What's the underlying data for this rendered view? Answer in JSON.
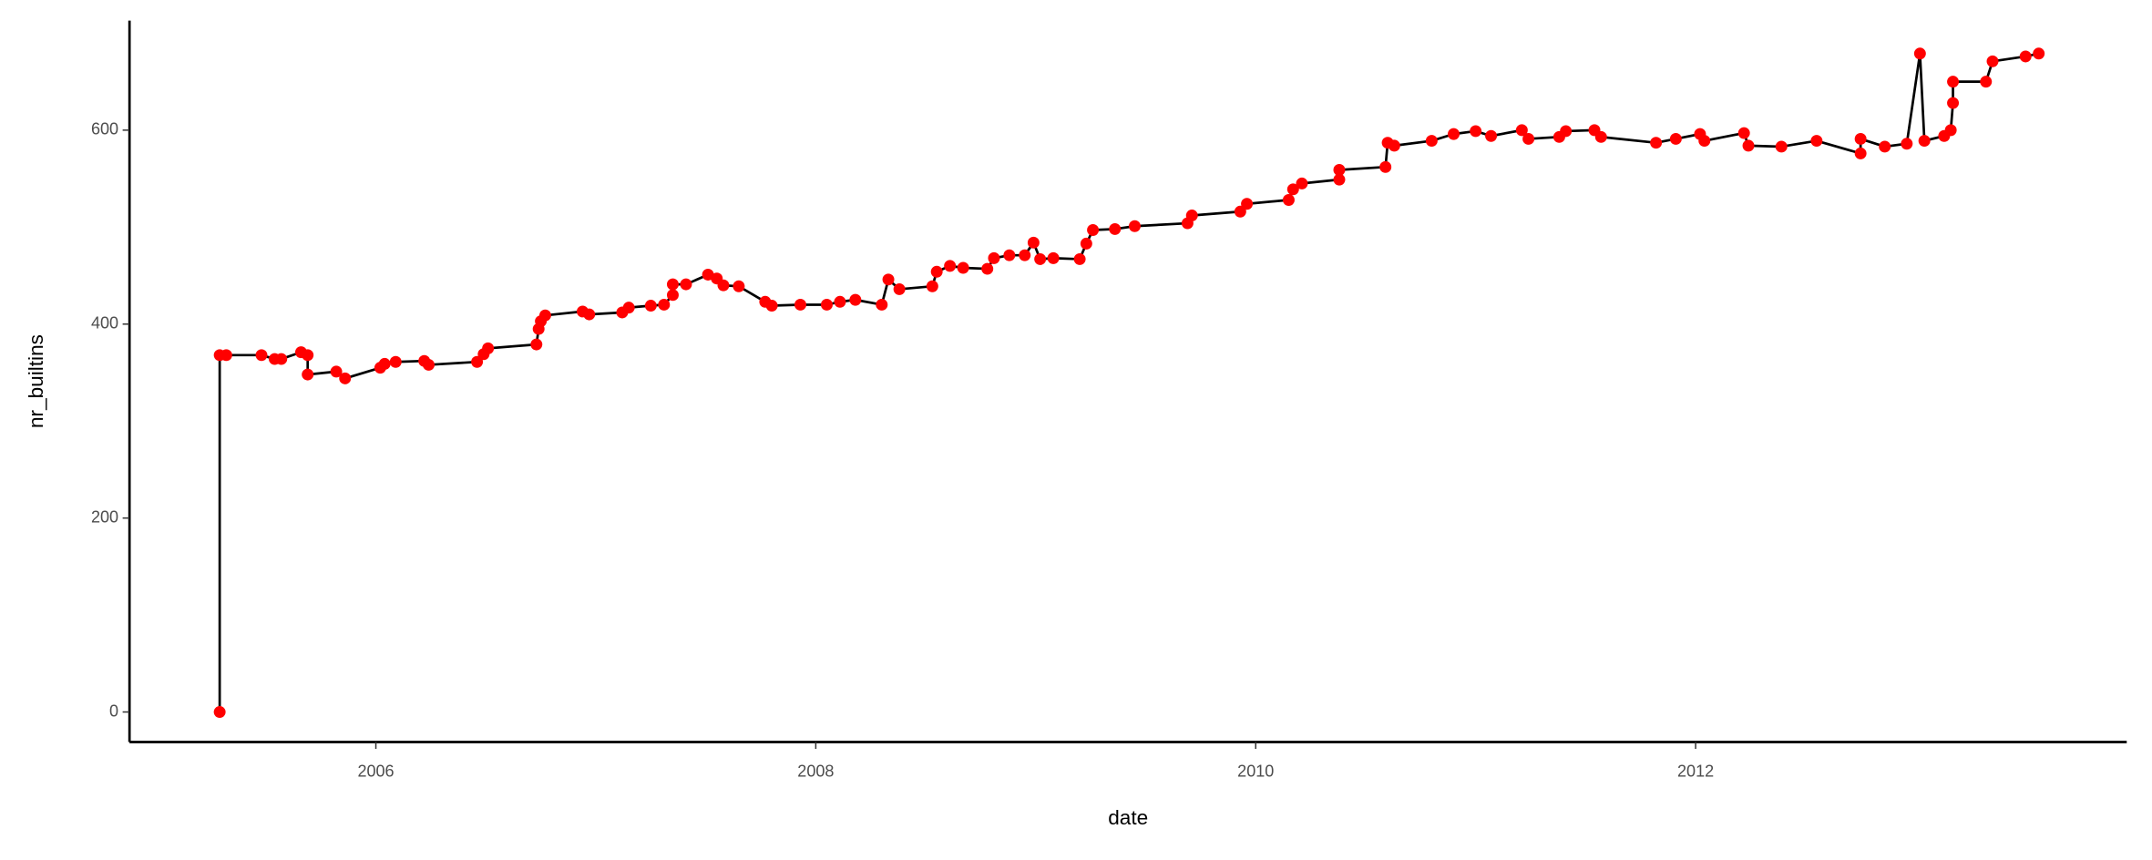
{
  "chart_data": {
    "type": "line",
    "x_label": "date",
    "y_label": "nr_builtins",
    "xlim": [
      2004.88,
      2013.96
    ],
    "ylim": [
      -31,
      713
    ],
    "xticks": [
      2006,
      2008,
      2010,
      2012
    ],
    "yticks": [
      0,
      200,
      400,
      600
    ],
    "grid": false,
    "line_color": "#000000",
    "point_color": "#ff0000",
    "x": [
      2005.29,
      2005.29,
      2005.32,
      2005.48,
      2005.54,
      2005.57,
      2005.66,
      2005.69,
      2005.69,
      2005.82,
      2005.86,
      2006.02,
      2006.04,
      2006.09,
      2006.22,
      2006.24,
      2006.46,
      2006.49,
      2006.51,
      2006.73,
      2006.74,
      2006.75,
      2006.77,
      2006.94,
      2006.97,
      2007.12,
      2007.15,
      2007.25,
      2007.31,
      2007.35,
      2007.35,
      2007.41,
      2007.51,
      2007.55,
      2007.58,
      2007.65,
      2007.77,
      2007.8,
      2007.93,
      2008.05,
      2008.11,
      2008.18,
      2008.3,
      2008.33,
      2008.38,
      2008.53,
      2008.55,
      2008.61,
      2008.67,
      2008.78,
      2008.81,
      2008.88,
      2008.95,
      2008.99,
      2009.02,
      2009.08,
      2009.2,
      2009.23,
      2009.26,
      2009.36,
      2009.45,
      2009.69,
      2009.71,
      2009.93,
      2009.96,
      2010.15,
      2010.17,
      2010.21,
      2010.38,
      2010.38,
      2010.59,
      2010.6,
      2010.63,
      2010.8,
      2010.9,
      2011.0,
      2011.07,
      2011.21,
      2011.24,
      2011.38,
      2011.41,
      2011.54,
      2011.57,
      2011.82,
      2011.91,
      2012.02,
      2012.04,
      2012.22,
      2012.24,
      2012.39,
      2012.55,
      2012.75,
      2012.75,
      2012.86,
      2012.96,
      2013.02,
      2013.04,
      2013.13,
      2013.16,
      2013.17,
      2013.17,
      2013.32,
      2013.35,
      2013.5,
      2013.56
    ],
    "values": [
      0,
      368,
      368,
      368,
      364,
      364,
      371,
      368,
      348,
      351,
      344,
      355,
      359,
      361,
      362,
      358,
      361,
      369,
      375,
      379,
      395,
      403,
      409,
      413,
      410,
      412,
      417,
      419,
      420,
      430,
      441,
      441,
      451,
      447,
      440,
      439,
      423,
      419,
      420,
      420,
      423,
      425,
      420,
      446,
      436,
      439,
      454,
      460,
      458,
      457,
      468,
      471,
      471,
      484,
      467,
      468,
      467,
      483,
      497,
      498,
      501,
      504,
      512,
      516,
      524,
      528,
      539,
      545,
      549,
      559,
      562,
      587,
      584,
      589,
      596,
      599,
      594,
      600,
      591,
      593,
      599,
      600,
      593,
      587,
      591,
      596,
      589,
      597,
      584,
      583,
      589,
      576,
      591,
      583,
      586,
      679,
      589,
      594,
      600,
      628,
      650,
      650,
      671,
      676,
      679
    ]
  }
}
